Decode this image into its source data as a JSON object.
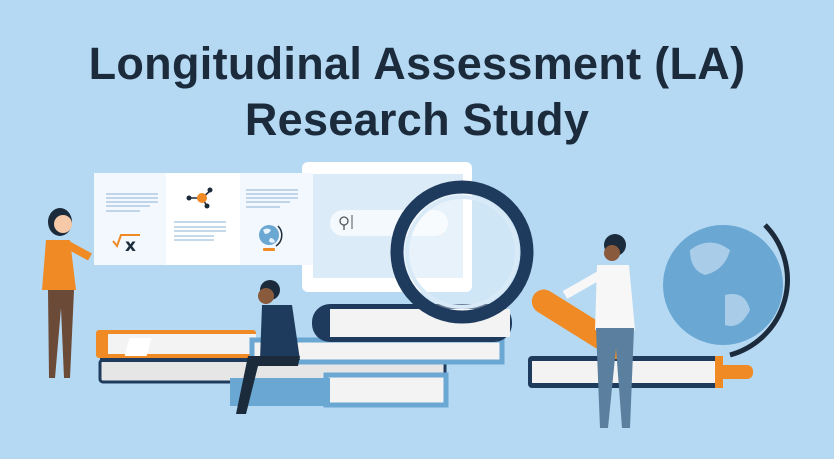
{
  "banner": {
    "title_line1": "Longitudinal Assessment (LA)",
    "title_line2": "Research Study",
    "math_symbol": "x"
  },
  "colors": {
    "background": "#b5d9f3",
    "title": "#1b2b3c",
    "accent_orange": "#f08a24",
    "navy": "#1e3a5c"
  },
  "icons": [
    "search-icon",
    "molecule-icon",
    "square-root-icon",
    "globe-icon",
    "magnifying-glass-icon"
  ]
}
